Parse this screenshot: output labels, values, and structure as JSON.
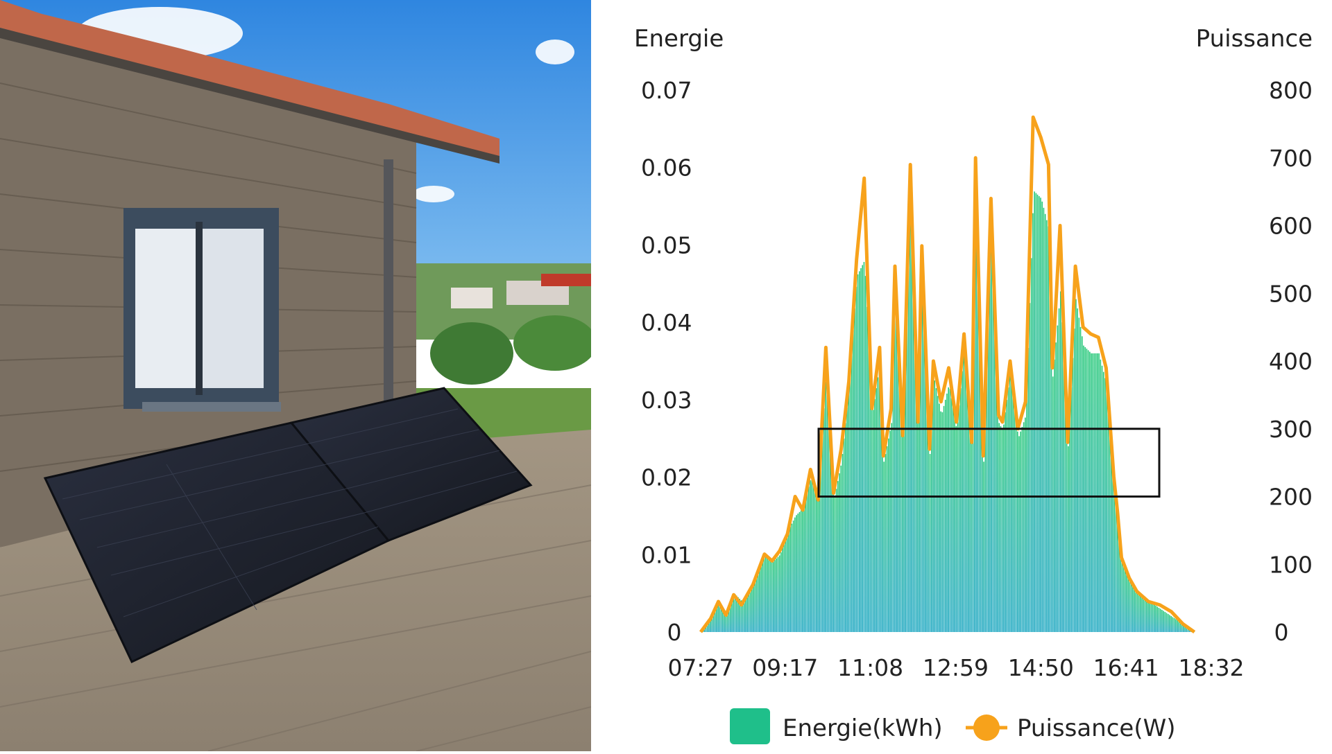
{
  "chart_data": {
    "type": "bar+line",
    "y_left_title": "Energie",
    "y_right_title": "Puissance",
    "y_left_ticks": [
      "0.07",
      "0.06",
      "0.05",
      "0.04",
      "0.03",
      "0.02",
      "0.01",
      "0"
    ],
    "y_right_ticks": [
      "800",
      "700",
      "600",
      "500",
      "400",
      "300",
      "200",
      "100",
      "0"
    ],
    "y_left_range": [
      0,
      0.07
    ],
    "y_right_range": [
      0,
      800
    ],
    "x_ticks": [
      "07:27",
      "09:17",
      "11:08",
      "12:59",
      "14:50",
      "16:41",
      "18:32"
    ],
    "x_range": [
      "07:27",
      "19:00"
    ],
    "legend": [
      {
        "name": "Energie(kWh)",
        "color": "#1fbf8a"
      },
      {
        "name": "Puissance(W)",
        "color": "#f7a21b"
      }
    ],
    "highlight_box_y_range_W": [
      200,
      300
    ],
    "series_power_W": [
      [
        "07:27",
        0
      ],
      [
        "07:40",
        20
      ],
      [
        "07:50",
        45
      ],
      [
        "08:00",
        25
      ],
      [
        "08:10",
        55
      ],
      [
        "08:20",
        40
      ],
      [
        "08:35",
        70
      ],
      [
        "08:50",
        115
      ],
      [
        "09:00",
        105
      ],
      [
        "09:10",
        120
      ],
      [
        "09:20",
        145
      ],
      [
        "09:30",
        200
      ],
      [
        "09:40",
        180
      ],
      [
        "09:50",
        240
      ],
      [
        "10:00",
        195
      ],
      [
        "10:10",
        420
      ],
      [
        "10:20",
        205
      ],
      [
        "10:30",
        270
      ],
      [
        "10:40",
        370
      ],
      [
        "10:50",
        550
      ],
      [
        "11:00",
        670
      ],
      [
        "11:10",
        330
      ],
      [
        "11:20",
        420
      ],
      [
        "11:25",
        260
      ],
      [
        "11:35",
        330
      ],
      [
        "11:40",
        540
      ],
      [
        "11:50",
        290
      ],
      [
        "12:00",
        690
      ],
      [
        "12:10",
        310
      ],
      [
        "12:15",
        570
      ],
      [
        "12:25",
        270
      ],
      [
        "12:30",
        400
      ],
      [
        "12:40",
        340
      ],
      [
        "12:50",
        390
      ],
      [
        "13:00",
        310
      ],
      [
        "13:10",
        440
      ],
      [
        "13:20",
        280
      ],
      [
        "13:25",
        700
      ],
      [
        "13:35",
        260
      ],
      [
        "13:45",
        640
      ],
      [
        "13:55",
        320
      ],
      [
        "14:00",
        310
      ],
      [
        "14:10",
        400
      ],
      [
        "14:20",
        300
      ],
      [
        "14:30",
        340
      ],
      [
        "14:40",
        760
      ],
      [
        "14:50",
        730
      ],
      [
        "15:00",
        690
      ],
      [
        "15:05",
        390
      ],
      [
        "15:15",
        600
      ],
      [
        "15:25",
        280
      ],
      [
        "15:35",
        540
      ],
      [
        "15:45",
        450
      ],
      [
        "15:55",
        440
      ],
      [
        "16:05",
        435
      ],
      [
        "16:15",
        390
      ],
      [
        "16:25",
        230
      ],
      [
        "16:30",
        175
      ],
      [
        "16:35",
        110
      ],
      [
        "16:45",
        80
      ],
      [
        "16:55",
        60
      ],
      [
        "17:10",
        45
      ],
      [
        "17:25",
        40
      ],
      [
        "17:40",
        30
      ],
      [
        "17:55",
        12
      ],
      [
        "18:10",
        0
      ]
    ],
    "series_energy_kWh": [
      [
        "07:27",
        0
      ],
      [
        "07:40",
        0.002
      ],
      [
        "07:50",
        0.004
      ],
      [
        "08:00",
        0.002
      ],
      [
        "08:10",
        0.005
      ],
      [
        "08:20",
        0.004
      ],
      [
        "08:35",
        0.006
      ],
      [
        "08:50",
        0.01
      ],
      [
        "09:00",
        0.009
      ],
      [
        "09:10",
        0.01
      ],
      [
        "09:20",
        0.013
      ],
      [
        "09:30",
        0.015
      ],
      [
        "09:40",
        0.016
      ],
      [
        "09:50",
        0.02
      ],
      [
        "10:00",
        0.017
      ],
      [
        "10:10",
        0.034
      ],
      [
        "10:20",
        0.017
      ],
      [
        "10:30",
        0.022
      ],
      [
        "10:40",
        0.032
      ],
      [
        "10:50",
        0.046
      ],
      [
        "11:00",
        0.048
      ],
      [
        "11:10",
        0.028
      ],
      [
        "11:20",
        0.035
      ],
      [
        "11:25",
        0.022
      ],
      [
        "11:35",
        0.027
      ],
      [
        "11:40",
        0.045
      ],
      [
        "11:50",
        0.024
      ],
      [
        "12:00",
        0.057
      ],
      [
        "12:10",
        0.026
      ],
      [
        "12:15",
        0.048
      ],
      [
        "12:25",
        0.023
      ],
      [
        "12:30",
        0.033
      ],
      [
        "12:40",
        0.028
      ],
      [
        "12:50",
        0.032
      ],
      [
        "13:00",
        0.026
      ],
      [
        "13:10",
        0.037
      ],
      [
        "13:20",
        0.024
      ],
      [
        "13:25",
        0.059
      ],
      [
        "13:35",
        0.022
      ],
      [
        "13:45",
        0.054
      ],
      [
        "13:55",
        0.027
      ],
      [
        "14:00",
        0.026
      ],
      [
        "14:10",
        0.034
      ],
      [
        "14:20",
        0.025
      ],
      [
        "14:30",
        0.028
      ],
      [
        "14:40",
        0.057
      ],
      [
        "14:50",
        0.056
      ],
      [
        "15:00",
        0.052
      ],
      [
        "15:05",
        0.033
      ],
      [
        "15:15",
        0.044
      ],
      [
        "15:25",
        0.024
      ],
      [
        "15:35",
        0.043
      ],
      [
        "15:45",
        0.037
      ],
      [
        "15:55",
        0.036
      ],
      [
        "16:05",
        0.036
      ],
      [
        "16:15",
        0.032
      ],
      [
        "16:25",
        0.019
      ],
      [
        "16:30",
        0.015
      ],
      [
        "16:35",
        0.009
      ],
      [
        "16:45",
        0.007
      ],
      [
        "16:55",
        0.005
      ],
      [
        "17:10",
        0.004
      ],
      [
        "17:25",
        0.003
      ],
      [
        "17:40",
        0.002
      ],
      [
        "17:55",
        0.001
      ],
      [
        "18:10",
        0
      ]
    ]
  },
  "photo": {
    "colors": {
      "sky": "#3d8fe0",
      "wall": "#7a6f62",
      "deck": "#9b8e80",
      "panel": "#1e2230",
      "roof": "#c0674a"
    }
  }
}
